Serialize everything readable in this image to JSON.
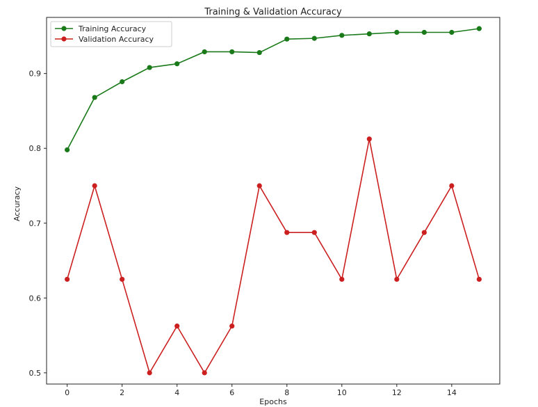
{
  "chart_data": {
    "type": "line",
    "title": "Training & Validation Accuracy",
    "xlabel": "Epochs",
    "ylabel": "Accuracy",
    "x": [
      0,
      1,
      2,
      3,
      4,
      5,
      6,
      7,
      8,
      9,
      10,
      11,
      12,
      13,
      14,
      15
    ],
    "xlim": [
      -0.75,
      15.75
    ],
    "ylim": [
      0.485,
      0.975
    ],
    "xticks": [
      0,
      2,
      4,
      6,
      8,
      10,
      12,
      14
    ],
    "yticks": [
      0.5,
      0.6,
      0.7,
      0.8,
      0.9
    ],
    "ytick_labels": [
      "0.5",
      "0.6",
      "0.7",
      "0.8",
      "0.9"
    ],
    "legend_position": "top-left",
    "grid": false,
    "series": [
      {
        "name": "Training Accuracy",
        "color": "#1a7a1a",
        "values": [
          0.798,
          0.868,
          0.889,
          0.908,
          0.913,
          0.929,
          0.929,
          0.928,
          0.946,
          0.947,
          0.951,
          0.953,
          0.955,
          0.955,
          0.955,
          0.96
        ]
      },
      {
        "name": "Validation Accuracy",
        "color": "#cc1f1f",
        "values": [
          0.625,
          0.75,
          0.625,
          0.5,
          0.5625,
          0.5,
          0.5625,
          0.75,
          0.6875,
          0.6875,
          0.625,
          0.8125,
          0.625,
          0.6875,
          0.75,
          0.625
        ]
      }
    ]
  }
}
